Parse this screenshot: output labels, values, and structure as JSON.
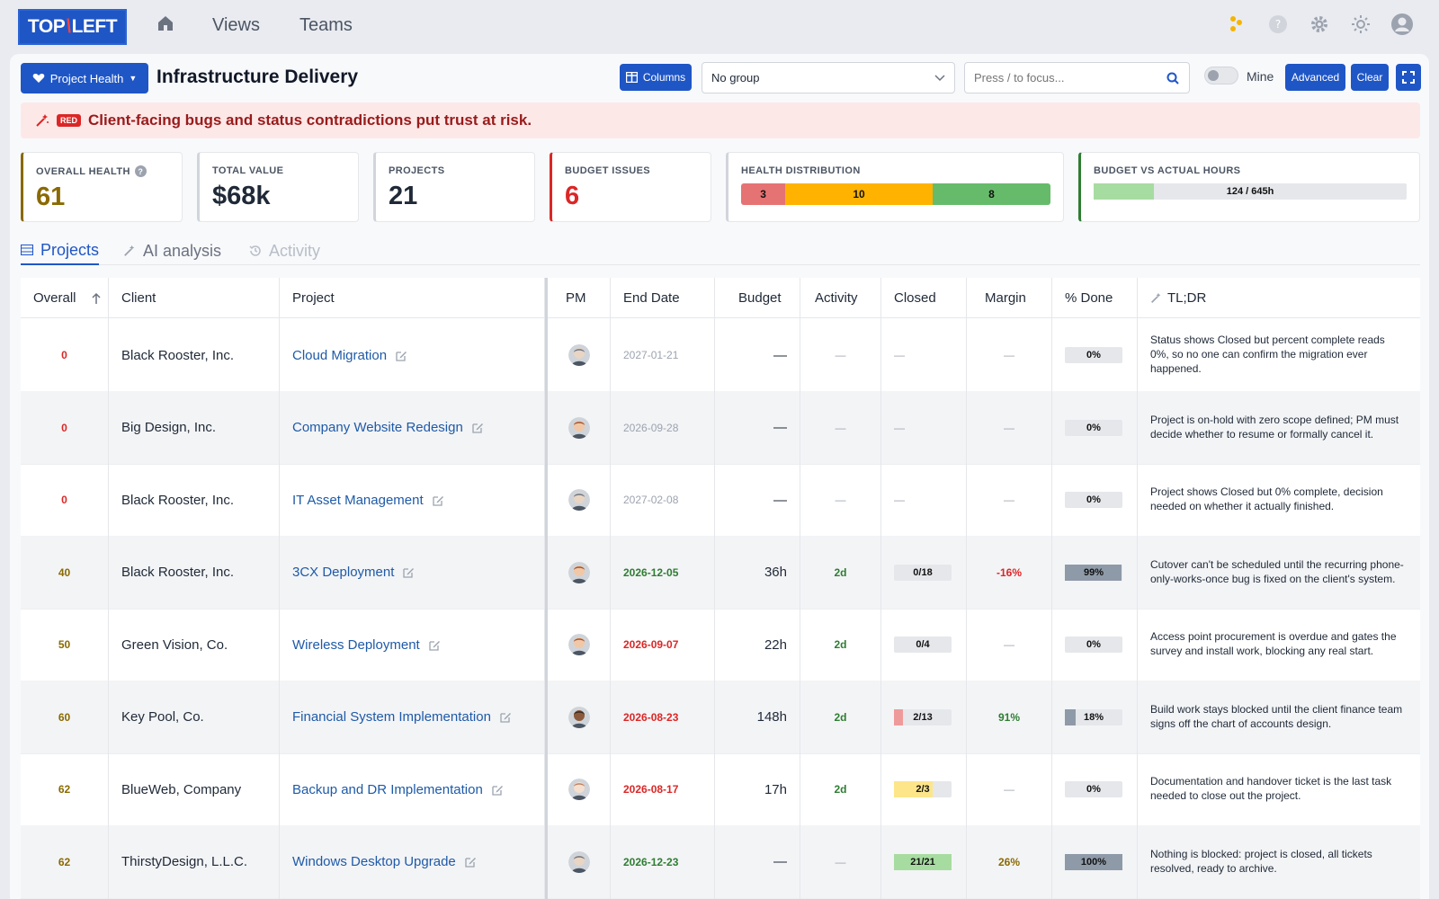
{
  "nav": {
    "logo_left": "TOP",
    "logo_slash": "\\",
    "logo_right": "LEFT",
    "views": "Views",
    "teams": "Teams"
  },
  "toolbar": {
    "view_button": "Project Health",
    "title": "Infrastructure Delivery",
    "columns": "Columns",
    "group_value": "No group",
    "search_placeholder": "Press / to focus...",
    "mine": "Mine",
    "advanced": "Advanced",
    "clear": "Clear"
  },
  "alert": {
    "badge": "RED",
    "text": "Client-facing bugs and status contradictions put trust at risk."
  },
  "kpis": {
    "overall_health": {
      "label": "OVERALL HEALTH",
      "value": "61",
      "color": "#8a6a00"
    },
    "total_value": {
      "label": "TOTAL VALUE",
      "value": "$68k"
    },
    "projects": {
      "label": "PROJECTS",
      "value": "21"
    },
    "budget_issues": {
      "label": "BUDGET ISSUES",
      "value": "6",
      "color": "#dc2626"
    },
    "health_distribution": {
      "label": "HEALTH DISTRIBUTION",
      "red": "3",
      "amber": "10",
      "green": "8"
    },
    "budget_vs_actual": {
      "label": "BUDGET VS ACTUAL HOURS",
      "text": "124 / 645h",
      "used": 124,
      "total": 645
    }
  },
  "tabs": [
    "Projects",
    "AI analysis",
    "Activity"
  ],
  "table": {
    "headers": [
      "Overall",
      "Client",
      "Project",
      "PM",
      "End Date",
      "Budget",
      "Activity",
      "Closed",
      "Margin",
      "% Done",
      "TL;DR"
    ],
    "rows": [
      {
        "overall": "0",
        "client": "Black Rooster, Inc.",
        "project": "Cloud Migration",
        "pm": "pm-1",
        "end_date": "2027-01-21",
        "budget": "—",
        "activity": "—",
        "closed": "—",
        "margin": "—",
        "done": "0%",
        "tldr": "Status shows Closed but percent complete reads 0%, so no one can confirm the migration ever happened."
      },
      {
        "overall": "0",
        "client": "Big Design, Inc.",
        "project": "Company Website Redesign",
        "pm": "pm-2",
        "end_date": "2026-09-28",
        "budget": "—",
        "activity": "—",
        "closed": "—",
        "margin": "—",
        "done": "0%",
        "tldr": "Project is on-hold with zero scope defined; PM must decide whether to resume or formally cancel it."
      },
      {
        "overall": "0",
        "client": "Black Rooster, Inc.",
        "project": "IT Asset Management",
        "pm": "pm-1",
        "end_date": "2027-02-08",
        "budget": "—",
        "activity": "—",
        "closed": "—",
        "margin": "—",
        "done": "0%",
        "tldr": "Project shows Closed but 0% complete, decision needed on whether it actually finished."
      },
      {
        "overall": "40",
        "client": "Black Rooster, Inc.",
        "project": "3CX Deployment",
        "pm": "pm-2",
        "end_date": "2026-12-05",
        "budget": "36h",
        "activity": "2d",
        "closed": "0/18",
        "margin": "-16%",
        "done": "99%",
        "tldr": "Cutover can't be scheduled until the recurring phone-only-works-once bug is fixed on the client's system."
      },
      {
        "overall": "50",
        "client": "Green Vision, Co.",
        "project": "Wireless Deployment",
        "pm": "pm-2",
        "end_date": "2026-09-07",
        "budget": "22h",
        "activity": "2d",
        "closed": "0/4",
        "margin": "—",
        "done": "0%",
        "tldr": "Access point procurement is overdue and gates the survey and install work, blocking any real start."
      },
      {
        "overall": "60",
        "client": "Key Pool, Co.",
        "project": "Financial System Implementation",
        "pm": "pm-3",
        "end_date": "2026-08-23",
        "budget": "148h",
        "activity": "2d",
        "closed": "2/13",
        "margin": "91%",
        "done": "18%",
        "tldr": "Build work stays blocked until the client finance team signs off the chart of accounts design."
      },
      {
        "overall": "62",
        "client": "BlueWeb, Company",
        "project": "Backup and DR Implementation",
        "pm": "pm-4",
        "end_date": "2026-08-17",
        "budget": "17h",
        "activity": "2d",
        "closed": "2/3",
        "margin": "—",
        "done": "0%",
        "tldr": "Documentation and handover ticket is the last task needed to close out the project."
      },
      {
        "overall": "62",
        "client": "ThirstyDesign, L.L.C.",
        "project": "Windows Desktop Upgrade",
        "pm": "pm-1",
        "end_date": "2026-12-23",
        "budget": "—",
        "activity": "—",
        "closed": "21/21",
        "margin": "26%",
        "done": "100%",
        "tldr": "Nothing is blocked: project is closed, all tickets resolved, ready to archive."
      }
    ]
  },
  "colors": {
    "brand": "#1f56c6",
    "red": "#dc2626",
    "amber": "#8a6a00",
    "green": "#2e7d32",
    "link": "#1e5aa8"
  }
}
